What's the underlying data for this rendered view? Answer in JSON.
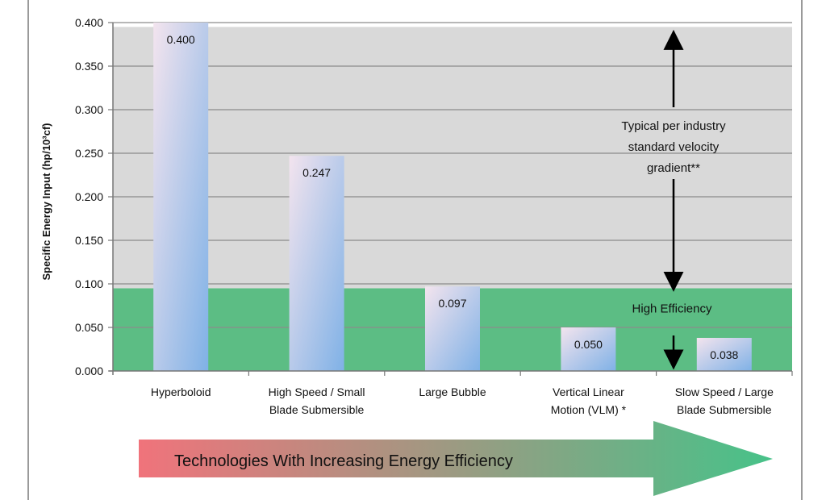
{
  "chart_data": {
    "type": "bar",
    "categories": [
      [
        "Hyperboloid"
      ],
      [
        "High Speed / Small",
        "Blade Submersible"
      ],
      [
        "Large Bubble"
      ],
      [
        "Vertical Linear",
        "Motion (VLM) *"
      ],
      [
        "Slow Speed / Large",
        "Blade Submersible"
      ]
    ],
    "values": [
      0.4,
      0.247,
      0.097,
      0.05,
      0.038
    ],
    "value_labels": [
      "0.400",
      "0.247",
      "0.097",
      "0.050",
      "0.038"
    ],
    "ylabel": "Specific Energy Input (hp/10³cf)",
    "ylim": [
      0,
      0.4
    ],
    "yticks": [
      0.0,
      0.05,
      0.1,
      0.15,
      0.2,
      0.25,
      0.3,
      0.35,
      0.4
    ],
    "ytick_labels": [
      "0.000",
      "0.050",
      "0.100",
      "0.150",
      "0.200",
      "0.250",
      "0.300",
      "0.350",
      "0.400"
    ],
    "grid": true,
    "bands": [
      {
        "label": "High Efficiency",
        "from": 0,
        "to": 0.095,
        "color": "#5cbd84"
      },
      {
        "label": "",
        "from": 0.095,
        "to": 0.395,
        "color": "#d9d9d9"
      }
    ],
    "annotation": {
      "lines": [
        "Typical per industry",
        "standard velocity",
        "gradient**"
      ],
      "arrow_from": 0.095,
      "arrow_to": 0.395
    },
    "bottom_arrow": {
      "label": "Technologies With Increasing Energy Efficiency",
      "color_start": "#f0737b",
      "color_end": "#47c289"
    },
    "colors": {
      "bar_light": "#f3e4ee",
      "bar_dark": "#7fb1e6",
      "gridline": "#8c8c8c"
    }
  }
}
